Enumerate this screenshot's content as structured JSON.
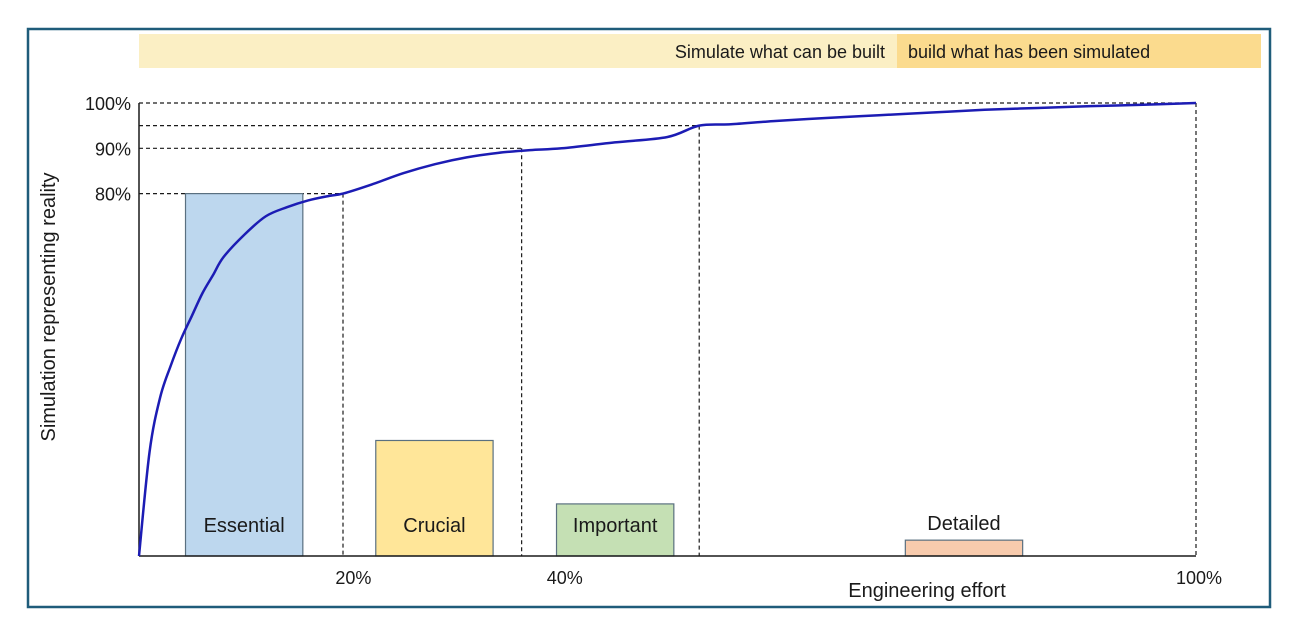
{
  "chart_data": {
    "type": "line",
    "banner": {
      "left_text": "Simulate what can be built",
      "right_text": "build what has been simulated",
      "left_color": "#fbefc4",
      "right_color": "#fbdb8e"
    },
    "xlabel": "Engineering effort",
    "ylabel": "Simulation representing reality",
    "xlim": [
      0,
      100
    ],
    "ylim": [
      0,
      100
    ],
    "x_ticks": [
      {
        "value": 20,
        "label": "20%"
      },
      {
        "value": 40,
        "label": "40%"
      },
      {
        "value": 100,
        "label": "100%"
      }
    ],
    "y_ticks": [
      {
        "value": 80,
        "label": "80%"
      },
      {
        "value": 90,
        "label": "90%"
      },
      {
        "value": 100,
        "label": "100%"
      }
    ],
    "series": [
      {
        "color": "#1c1cb4",
        "x": [
          0,
          1,
          2,
          3,
          4,
          5,
          6,
          7,
          8,
          10,
          12,
          14,
          16,
          18,
          19.3,
          22,
          25,
          28,
          31,
          34,
          37,
          40,
          45,
          50,
          53,
          56,
          60,
          65,
          70,
          75,
          80,
          85,
          90,
          95,
          100
        ],
        "y": [
          0,
          23,
          35,
          42,
          48,
          53,
          58,
          62,
          66,
          71,
          75,
          77,
          78.5,
          79.5,
          80,
          82,
          84.5,
          86.5,
          88,
          89,
          89.6,
          90,
          91.3,
          92.5,
          95,
          95.3,
          96,
          96.7,
          97.3,
          97.9,
          98.5,
          98.9,
          99.3,
          99.6,
          100
        ]
      }
    ],
    "reference_lines": [
      {
        "x": 19.3,
        "y": 80
      },
      {
        "x": 36.2,
        "y": 90
      },
      {
        "x": 53,
        "y": 95
      },
      {
        "x": 100,
        "y": 100
      }
    ],
    "bars": [
      {
        "label": "Essential",
        "x_start": 4.4,
        "x_end": 15.5,
        "value": 80,
        "color": "#bdd7ee"
      },
      {
        "label": "Crucial",
        "x_start": 22.4,
        "x_end": 33.5,
        "value": 25.5,
        "color": "#ffe699"
      },
      {
        "label": "Important",
        "x_start": 39.5,
        "x_end": 50.6,
        "value": 11.5,
        "color": "#c5e0b4"
      },
      {
        "label": "Detailed",
        "x_start": 72.5,
        "x_end": 83.6,
        "value": 3.5,
        "color": "#f8cbad"
      }
    ],
    "frame_color": "#1f5c7a"
  }
}
